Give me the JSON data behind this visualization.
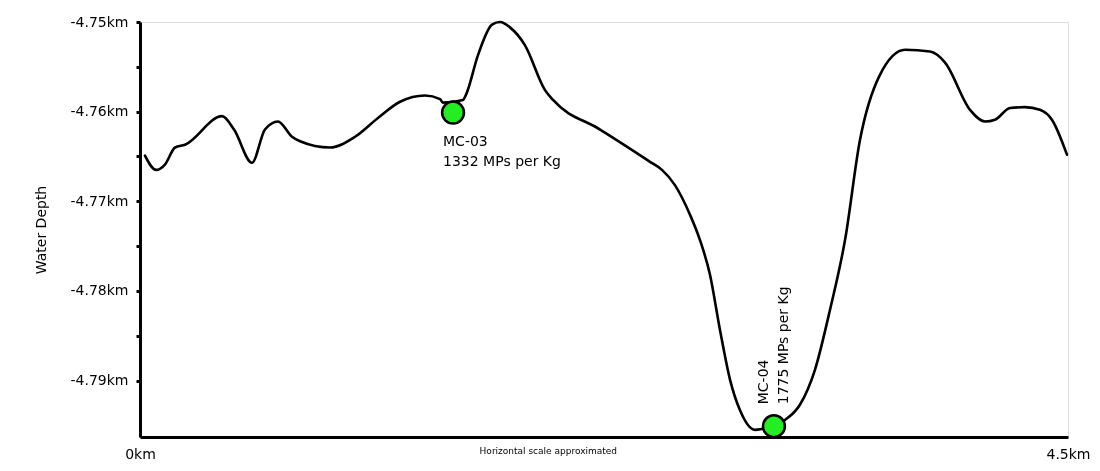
{
  "chart_data": {
    "type": "line",
    "ylabel": "Water Depth",
    "xlim": [
      0,
      4.5
    ],
    "ylim": [
      -4.7963,
      -4.75
    ],
    "xticks": [
      {
        "value": 0,
        "label": "0km"
      },
      {
        "value": 4.5,
        "label": "4.5km"
      }
    ],
    "yticks": [
      {
        "value": -4.75,
        "label": "-4.75km"
      },
      {
        "value": -4.755,
        "label": null
      },
      {
        "value": -4.76,
        "label": "-4.76km"
      },
      {
        "value": -4.765,
        "label": null
      },
      {
        "value": -4.77,
        "label": "-4.77km"
      },
      {
        "value": -4.775,
        "label": null
      },
      {
        "value": -4.78,
        "label": "-4.78km"
      },
      {
        "value": -4.785,
        "label": null
      },
      {
        "value": -4.79,
        "label": "-4.79km"
      }
    ],
    "grid": false,
    "series": [
      {
        "color": "#000000",
        "marker": "none",
        "line_style": "solid",
        "x": [
          0.024,
          0.078,
          0.121,
          0.17,
          0.218,
          0.398,
          0.456,
          0.543,
          0.606,
          0.669,
          0.737,
          0.776,
          0.921,
          1.043,
          1.154,
          1.261,
          1.382,
          1.455,
          1.469,
          1.566,
          1.581,
          1.639,
          1.707,
          1.746,
          1.794,
          1.867,
          1.964,
          2.003,
          2.231,
          2.473,
          2.531,
          2.594,
          2.667,
          2.715,
          2.764,
          2.812,
          2.861,
          2.909,
          2.982,
          3.016,
          3.128,
          3.2,
          3.273,
          3.346,
          3.419,
          3.491,
          3.588,
          3.71,
          3.831,
          3.903,
          4.025,
          4.097,
          4.146,
          4.219,
          4.291,
          4.364,
          4.422,
          4.495
        ],
        "values": [
          -4.7649,
          -4.7665,
          -4.7659,
          -4.764,
          -4.7637,
          -4.7605,
          -4.762,
          -4.7657,
          -4.762,
          -4.7611,
          -4.7628,
          -4.7633,
          -4.764,
          -4.7628,
          -4.7607,
          -4.7589,
          -4.7582,
          -4.7586,
          -4.759,
          -4.7587,
          -4.7581,
          -4.7537,
          -4.7503,
          -4.75,
          -4.7506,
          -4.7526,
          -4.7576,
          -4.7587,
          -4.762,
          -4.7656,
          -4.7665,
          -4.7682,
          -4.7715,
          -4.7743,
          -4.7782,
          -4.7843,
          -4.7899,
          -4.7933,
          -4.7955,
          -4.7954,
          -4.7944,
          -4.7927,
          -4.7888,
          -4.7821,
          -4.7743,
          -4.7632,
          -4.7559,
          -4.7531,
          -4.7533,
          -4.7545,
          -4.7598,
          -4.7611,
          -4.7609,
          -4.7596,
          -4.7595,
          -4.7598,
          -4.7609,
          -4.7648
        ]
      },
      {
        "type": "scatter",
        "color": "#22ee22",
        "marker": "circle",
        "x": [
          1.518,
          3.074
        ],
        "values": [
          -4.7601,
          -4.7951
        ]
      }
    ],
    "annotations": [
      {
        "text": "MC-03\n1332 MPs per Kg",
        "x": 1.518,
        "y": -4.7601
      },
      {
        "text": "MC-04\n1775 MPs per Kg",
        "x": 3.074,
        "y": -4.7951
      },
      "Horizontal scale approximated"
    ]
  }
}
